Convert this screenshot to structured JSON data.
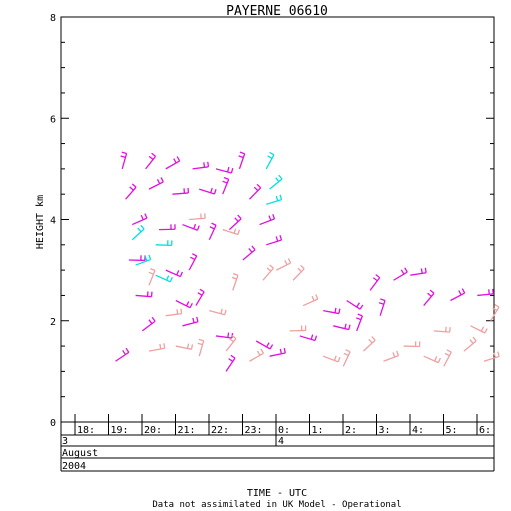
{
  "chart_data": {
    "type": "scatter",
    "title": "PAYERNE 06610",
    "ylabel": "HEIGHT km",
    "xlabel": "TIME - UTC",
    "footnote": "Data not assimilated in UK Model - Operational",
    "ylim": [
      0,
      8
    ],
    "y_ticks": [
      "0",
      "2",
      "4",
      "6",
      "8"
    ],
    "x_ticks": [
      "18:",
      "19:",
      "20:",
      "21:",
      "22:",
      "23:",
      "0:",
      "1:",
      "2:",
      "3:",
      "4:",
      "5:",
      "6:"
    ],
    "date_rows": {
      "day_start": "3",
      "day_next": "4",
      "month": "August",
      "year": "2004"
    },
    "series": [
      {
        "color": "#e010e0",
        "points": [
          {
            "x": 19.2,
            "y": 5.0
          },
          {
            "x": 19.9,
            "y": 5.0
          },
          {
            "x": 20.5,
            "y": 5.0
          },
          {
            "x": 21.3,
            "y": 5.0
          },
          {
            "x": 22.0,
            "y": 5.0
          },
          {
            "x": 22.7,
            "y": 5.0
          },
          {
            "x": 19.3,
            "y": 4.4
          },
          {
            "x": 20.0,
            "y": 4.6
          },
          {
            "x": 20.7,
            "y": 4.5
          },
          {
            "x": 21.5,
            "y": 4.6
          },
          {
            "x": 22.2,
            "y": 4.5
          },
          {
            "x": 23.0,
            "y": 4.4
          },
          {
            "x": 19.5,
            "y": 3.9
          },
          {
            "x": 20.3,
            "y": 3.8
          },
          {
            "x": 21.0,
            "y": 3.9
          },
          {
            "x": 21.8,
            "y": 3.6
          },
          {
            "x": 22.4,
            "y": 3.8
          },
          {
            "x": 23.3,
            "y": 3.9
          },
          {
            "x": 19.4,
            "y": 3.2
          },
          {
            "x": 20.5,
            "y": 3.0
          },
          {
            "x": 21.2,
            "y": 3.0
          },
          {
            "x": 22.8,
            "y": 3.2
          },
          {
            "x": 23.5,
            "y": 3.5
          },
          {
            "x": 19.6,
            "y": 2.5
          },
          {
            "x": 20.8,
            "y": 2.4
          },
          {
            "x": 21.4,
            "y": 2.3
          },
          {
            "x": 19.8,
            "y": 1.8
          },
          {
            "x": 21.0,
            "y": 1.9
          },
          {
            "x": 22.0,
            "y": 1.7
          },
          {
            "x": 23.2,
            "y": 1.6
          },
          {
            "x": 22.3,
            "y": 1.0
          },
          {
            "x": 19.0,
            "y": 1.2
          },
          {
            "x": 23.6,
            "y": 1.3
          },
          {
            "x": 1.2,
            "y": 2.2
          },
          {
            "x": 1.9,
            "y": 2.4
          },
          {
            "x": 2.6,
            "y": 2.6
          },
          {
            "x": 3.3,
            "y": 2.8
          },
          {
            "x": 3.8,
            "y": 2.9
          },
          {
            "x": 1.5,
            "y": 1.9
          },
          {
            "x": 2.9,
            "y": 2.1
          },
          {
            "x": 4.2,
            "y": 2.3
          },
          {
            "x": 5.0,
            "y": 2.4
          },
          {
            "x": 5.8,
            "y": 2.5
          },
          {
            "x": 0.5,
            "y": 1.7
          },
          {
            "x": 2.2,
            "y": 1.8
          }
        ]
      },
      {
        "color": "#00e0e0",
        "points": [
          {
            "x": 19.5,
            "y": 3.6
          },
          {
            "x": 19.6,
            "y": 3.1
          },
          {
            "x": 20.2,
            "y": 3.5
          },
          {
            "x": 20.2,
            "y": 2.9
          },
          {
            "x": 23.5,
            "y": 5.0
          },
          {
            "x": 23.6,
            "y": 4.6
          },
          {
            "x": 23.5,
            "y": 4.3
          }
        ]
      },
      {
        "color": "#f0a0a0",
        "points": [
          {
            "x": 20.0,
            "y": 1.4
          },
          {
            "x": 20.8,
            "y": 1.5
          },
          {
            "x": 21.5,
            "y": 1.3
          },
          {
            "x": 22.3,
            "y": 1.4
          },
          {
            "x": 23.0,
            "y": 1.2
          },
          {
            "x": 20.5,
            "y": 2.1
          },
          {
            "x": 21.8,
            "y": 2.2
          },
          {
            "x": 22.5,
            "y": 2.6
          },
          {
            "x": 23.4,
            "y": 2.8
          },
          {
            "x": 23.8,
            "y": 3.0
          },
          {
            "x": 21.2,
            "y": 4.0
          },
          {
            "x": 22.2,
            "y": 3.8
          },
          {
            "x": 20.0,
            "y": 2.7
          },
          {
            "x": 0.3,
            "y": 2.8
          },
          {
            "x": 0.6,
            "y": 2.3
          },
          {
            "x": 0.2,
            "y": 1.8
          },
          {
            "x": 1.2,
            "y": 1.3
          },
          {
            "x": 1.8,
            "y": 1.1
          },
          {
            "x": 2.4,
            "y": 1.4
          },
          {
            "x": 3.0,
            "y": 1.2
          },
          {
            "x": 3.6,
            "y": 1.5
          },
          {
            "x": 4.2,
            "y": 1.3
          },
          {
            "x": 4.8,
            "y": 1.1
          },
          {
            "x": 5.4,
            "y": 1.4
          },
          {
            "x": 6.0,
            "y": 1.2
          },
          {
            "x": 4.5,
            "y": 1.8
          },
          {
            "x": 5.6,
            "y": 1.9
          },
          {
            "x": 6.2,
            "y": 2.0
          }
        ]
      }
    ]
  }
}
